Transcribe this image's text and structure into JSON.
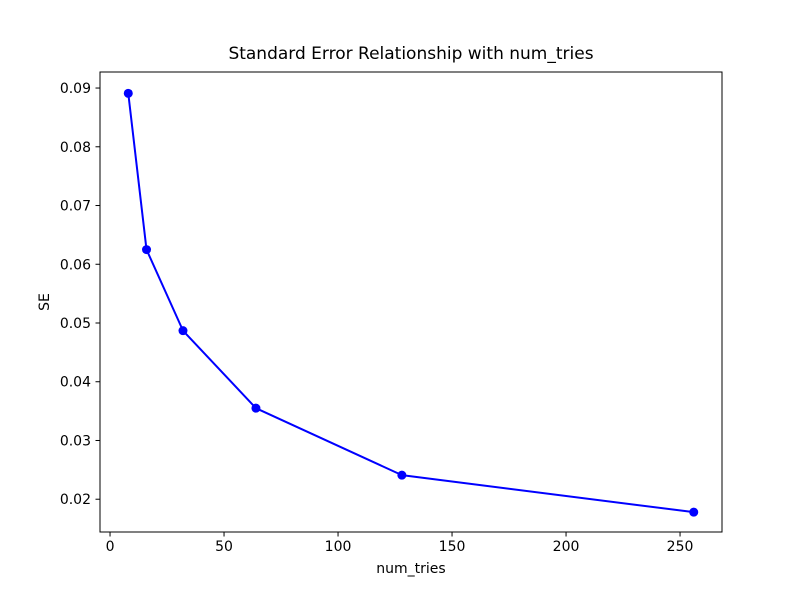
{
  "figure": {
    "background_color": "#ffffff",
    "title": "Standard Error Relationship with num_tries",
    "xlabel": "num_tries",
    "ylabel": "SE"
  },
  "chart_data": {
    "type": "line",
    "title": "Standard Error Relationship with num_tries",
    "xlabel": "num_tries",
    "ylabel": "SE",
    "series": [
      {
        "name": "SE",
        "x": [
          8,
          16,
          32,
          64,
          128,
          256
        ],
        "y": [
          0.0891,
          0.0625,
          0.0487,
          0.0355,
          0.0241,
          0.0178
        ],
        "color": "#0000ff",
        "marker": "circle",
        "marker_size": 4.5,
        "line_width": 2
      }
    ],
    "xlim": [
      -4.4,
      268.4
    ],
    "ylim": [
      0.01442,
      0.09273
    ],
    "xticks": [
      0,
      50,
      100,
      150,
      200,
      250
    ],
    "xtick_labels": [
      "0",
      "50",
      "100",
      "150",
      "200",
      "250"
    ],
    "yticks": [
      0.02,
      0.03,
      0.04,
      0.05,
      0.06,
      0.07,
      0.08,
      0.09
    ],
    "ytick_labels": [
      "0.02",
      "0.03",
      "0.04",
      "0.05",
      "0.06",
      "0.07",
      "0.08",
      "0.09"
    ],
    "grid": false,
    "legend_position": "none",
    "spine_color": "#000000",
    "tick_color": "#000000",
    "tick_label_color": "#000000"
  }
}
